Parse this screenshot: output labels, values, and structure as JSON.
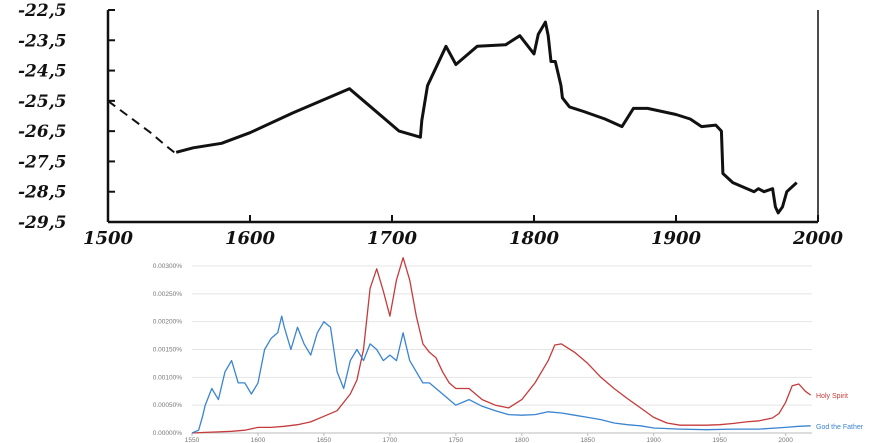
{
  "chart_data": [
    {
      "type": "line",
      "title": "",
      "xlabel": "",
      "ylabel": "",
      "xlim": [
        1500,
        2000
      ],
      "ylim": [
        -29.5,
        -22.5
      ],
      "x_ticks": [
        "1500",
        "1600",
        "1700",
        "1800",
        "1900",
        "2000"
      ],
      "y_ticks": [
        "-22,5",
        "-23,5",
        "-24,5",
        "-25,5",
        "-26,5",
        "-27,5",
        "-28,5",
        "-29,5"
      ],
      "series": [
        {
          "name": "",
          "style": "dashed",
          "x": [
            1500,
            1510,
            1520,
            1530,
            1540,
            1548
          ],
          "y": [
            -25.5,
            -25.85,
            -26.2,
            -26.55,
            -26.95,
            -27.25
          ]
        },
        {
          "name": "",
          "style": "solid",
          "x": [
            1548,
            1560,
            1580,
            1600,
            1630,
            1670,
            1705,
            1720,
            1721,
            1725,
            1738,
            1745,
            1760,
            1780,
            1790,
            1800,
            1803,
            1808,
            1810,
            1812,
            1815,
            1819,
            1820,
            1825,
            1835,
            1850,
            1862,
            1870,
            1880,
            1900,
            1910,
            1918,
            1928,
            1932,
            1933,
            1940,
            1955,
            1958,
            1962,
            1968,
            1970,
            1972,
            1975,
            1978,
            1985
          ],
          "y": [
            -27.2,
            -27.05,
            -26.9,
            -26.55,
            -25.9,
            -25.1,
            -26.5,
            -26.7,
            -26.15,
            -25.0,
            -23.7,
            -24.3,
            -23.7,
            -23.65,
            -23.35,
            -23.95,
            -23.3,
            -22.9,
            -23.35,
            -24.2,
            -24.2,
            -25.0,
            -25.4,
            -25.7,
            -25.85,
            -26.1,
            -26.35,
            -25.75,
            -25.75,
            -25.95,
            -26.1,
            -26.35,
            -26.3,
            -26.5,
            -27.9,
            -28.2,
            -28.5,
            -28.4,
            -28.5,
            -28.4,
            -29.0,
            -29.2,
            -29.0,
            -28.5,
            -28.2
          ]
        }
      ]
    },
    {
      "type": "line",
      "title": "",
      "xlabel": "",
      "ylabel": "",
      "xlim": [
        1550,
        2020
      ],
      "ylim": [
        0,
        0.003
      ],
      "x_ticks": [
        "1550",
        "1600",
        "1650",
        "1700",
        "1750",
        "1800",
        "1850",
        "1900",
        "1950",
        "2000"
      ],
      "y_ticks": [
        "0.00000%",
        "0.00050%",
        "0.00100%",
        "0.00150%",
        "0.00200%",
        "0.00250%",
        "0.00300%"
      ],
      "legend": "right",
      "grid": true,
      "series": [
        {
          "name": "Holy Spirit",
          "color": "#c53b3b",
          "x": [
            1550,
            1560,
            1570,
            1580,
            1590,
            1600,
            1610,
            1620,
            1630,
            1640,
            1650,
            1660,
            1665,
            1670,
            1675,
            1680,
            1685,
            1690,
            1695,
            1700,
            1705,
            1710,
            1715,
            1720,
            1725,
            1730,
            1735,
            1740,
            1745,
            1750,
            1760,
            1770,
            1780,
            1790,
            1800,
            1810,
            1820,
            1825,
            1830,
            1840,
            1850,
            1860,
            1870,
            1880,
            1890,
            1900,
            1910,
            1920,
            1930,
            1940,
            1950,
            1960,
            1970,
            1980,
            1990,
            1995,
            2000,
            2005,
            2010,
            2015,
            2019
          ],
          "y": [
            0.0,
            1e-05,
            2e-05,
            3e-05,
            5e-05,
            0.0001,
            0.0001,
            0.00012,
            0.00015,
            0.0002,
            0.0003,
            0.0004,
            0.00055,
            0.0007,
            0.00095,
            0.0015,
            0.0026,
            0.00295,
            0.00255,
            0.0021,
            0.00275,
            0.00315,
            0.00275,
            0.0021,
            0.0016,
            0.00145,
            0.00135,
            0.0011,
            0.0009,
            0.0008,
            0.0008,
            0.0006,
            0.0005,
            0.00045,
            0.0006,
            0.0009,
            0.0013,
            0.00158,
            0.0016,
            0.00145,
            0.00125,
            0.001,
            0.0008,
            0.00062,
            0.00045,
            0.00028,
            0.00018,
            0.00014,
            0.00014,
            0.00014,
            0.00015,
            0.00017,
            0.0002,
            0.00022,
            0.00027,
            0.00035,
            0.00055,
            0.00085,
            0.00088,
            0.00075,
            0.00068
          ]
        },
        {
          "name": "God the Father",
          "color": "#3a84d0",
          "x": [
            1550,
            1555,
            1558,
            1560,
            1565,
            1570,
            1575,
            1580,
            1585,
            1590,
            1595,
            1600,
            1605,
            1610,
            1615,
            1618,
            1620,
            1625,
            1630,
            1635,
            1640,
            1645,
            1650,
            1655,
            1660,
            1665,
            1670,
            1675,
            1680,
            1685,
            1690,
            1695,
            1700,
            1705,
            1710,
            1715,
            1720,
            1725,
            1730,
            1740,
            1750,
            1760,
            1770,
            1780,
            1790,
            1800,
            1810,
            1820,
            1830,
            1840,
            1850,
            1860,
            1870,
            1880,
            1890,
            1900,
            1920,
            1940,
            1960,
            1980,
            2000,
            2010,
            2019
          ],
          "y": [
            0.0,
            5e-05,
            0.0003,
            0.0005,
            0.0008,
            0.0006,
            0.0011,
            0.0013,
            0.0009,
            0.0009,
            0.0007,
            0.0009,
            0.0015,
            0.0017,
            0.0018,
            0.0021,
            0.0019,
            0.0015,
            0.0019,
            0.0016,
            0.0014,
            0.0018,
            0.002,
            0.0019,
            0.0011,
            0.0008,
            0.0013,
            0.0015,
            0.0013,
            0.0016,
            0.0015,
            0.0013,
            0.0014,
            0.0013,
            0.0018,
            0.0013,
            0.0011,
            0.0009,
            0.0009,
            0.0007,
            0.0005,
            0.0006,
            0.00048,
            0.0004,
            0.00033,
            0.00032,
            0.00033,
            0.00038,
            0.00036,
            0.00032,
            0.00028,
            0.00024,
            0.00018,
            0.00015,
            0.00013,
            9e-05,
            7e-05,
            6e-05,
            7e-05,
            7e-05,
            0.0001,
            0.00012,
            0.00013
          ]
        }
      ]
    }
  ]
}
